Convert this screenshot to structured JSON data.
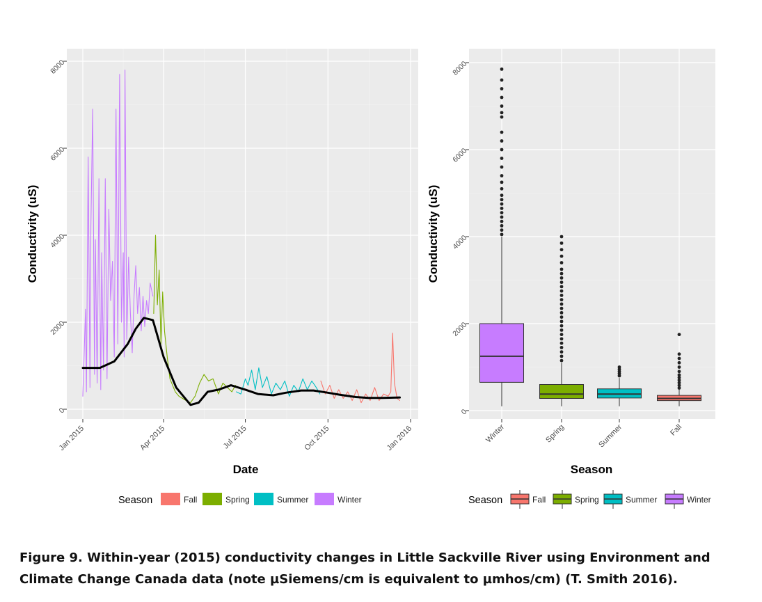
{
  "figure": {
    "caption_line1": "Figure 9.  Within-year (2015) conductivity changes in Little Sackville River using Environment and",
    "caption_line2": "Climate Change Canada data (note µSiemens/cm is equivalent to µmhos/cm) (T. Smith 2016)."
  },
  "season_colors": {
    "Fall": "#f8766d",
    "Spring": "#7cae00",
    "Summer": "#00bfc4",
    "Winter": "#c77cff"
  },
  "chart_data": [
    {
      "type": "line",
      "xlabel": "Date",
      "ylabel": "Conductivity (uS)",
      "x_ticks": [
        "Jan 2015",
        "Apr 2015",
        "Jul 2015",
        "Oct 2015",
        "Jan 2016"
      ],
      "y_ticks": [
        0,
        2000,
        4000,
        6000,
        8000
      ],
      "xlim": [
        "2015-01-01",
        "2016-01-01"
      ],
      "ylim": [
        0,
        8000
      ],
      "grid": true,
      "legend": {
        "title": "Season",
        "position": "bottom",
        "entries": [
          "Fall",
          "Spring",
          "Summer",
          "Winter"
        ]
      },
      "series": [
        {
          "name": "Winter",
          "x": [
            "2015-01-01",
            "2015-01-04",
            "2015-01-05",
            "2015-01-07",
            "2015-01-09",
            "2015-01-10",
            "2015-01-12",
            "2015-01-14",
            "2015-01-15",
            "2015-01-17",
            "2015-01-19",
            "2015-01-21",
            "2015-01-22",
            "2015-01-24",
            "2015-01-26",
            "2015-01-28",
            "2015-01-30",
            "2015-02-01",
            "2015-02-03",
            "2015-02-05",
            "2015-02-07",
            "2015-02-09",
            "2015-02-11",
            "2015-02-13",
            "2015-02-15",
            "2015-02-16",
            "2015-02-17",
            "2015-02-19",
            "2015-02-21",
            "2015-02-23",
            "2015-02-25",
            "2015-02-27",
            "2015-03-01",
            "2015-03-03",
            "2015-03-05",
            "2015-03-07",
            "2015-03-09",
            "2015-03-11",
            "2015-03-13",
            "2015-03-15",
            "2015-03-17",
            "2015-03-20"
          ],
          "y": [
            300,
            2300,
            400,
            5800,
            500,
            4200,
            6900,
            800,
            3900,
            600,
            5300,
            450,
            3600,
            900,
            5300,
            700,
            4600,
            2500,
            3400,
            1200,
            6900,
            1500,
            7700,
            2000,
            3600,
            1200,
            7800,
            1600,
            3500,
            2200,
            1300,
            2600,
            3300,
            2200,
            2800,
            1800,
            2600,
            1900,
            2500,
            2200,
            2900,
            2600
          ]
        },
        {
          "name": "Spring",
          "x": [
            "2015-03-21",
            "2015-03-23",
            "2015-03-25",
            "2015-03-27",
            "2015-03-29",
            "2015-03-31",
            "2015-04-02",
            "2015-04-05",
            "2015-04-08",
            "2015-04-11",
            "2015-04-14",
            "2015-04-18",
            "2015-04-22",
            "2015-04-26",
            "2015-05-01",
            "2015-05-06",
            "2015-05-11",
            "2015-05-16",
            "2015-05-21",
            "2015-05-26",
            "2015-06-01",
            "2015-06-06",
            "2015-06-11",
            "2015-06-16",
            "2015-06-20"
          ],
          "y": [
            2200,
            4000,
            2400,
            3200,
            1500,
            2700,
            1800,
            1200,
            700,
            550,
            400,
            300,
            250,
            200,
            150,
            300,
            600,
            800,
            650,
            700,
            350,
            600,
            500,
            400,
            550
          ]
        },
        {
          "name": "Summer",
          "x": [
            "2015-06-21",
            "2015-06-26",
            "2015-07-01",
            "2015-07-04",
            "2015-07-08",
            "2015-07-12",
            "2015-07-16",
            "2015-07-20",
            "2015-07-25",
            "2015-07-30",
            "2015-08-04",
            "2015-08-09",
            "2015-08-14",
            "2015-08-19",
            "2015-08-24",
            "2015-08-29",
            "2015-09-03",
            "2015-09-08",
            "2015-09-13",
            "2015-09-18",
            "2015-09-22"
          ],
          "y": [
            400,
            350,
            700,
            550,
            900,
            450,
            950,
            500,
            750,
            350,
            600,
            450,
            650,
            300,
            550,
            400,
            700,
            450,
            650,
            500,
            350
          ]
        },
        {
          "name": "Fall",
          "x": [
            "2015-09-23",
            "2015-09-28",
            "2015-10-03",
            "2015-10-08",
            "2015-10-13",
            "2015-10-18",
            "2015-10-23",
            "2015-10-28",
            "2015-11-02",
            "2015-11-07",
            "2015-11-12",
            "2015-11-17",
            "2015-11-22",
            "2015-11-27",
            "2015-12-02",
            "2015-12-07",
            "2015-12-10",
            "2015-12-12",
            "2015-12-14",
            "2015-12-17",
            "2015-12-20"
          ],
          "y": [
            650,
            350,
            550,
            250,
            450,
            250,
            400,
            200,
            450,
            150,
            350,
            200,
            500,
            200,
            350,
            300,
            400,
            1750,
            600,
            250,
            200
          ]
        },
        {
          "name": "",
          "x": [
            "2015-01-01",
            "2015-01-20",
            "2015-02-05",
            "2015-02-20",
            "2015-03-01",
            "2015-03-10",
            "2015-03-20",
            "2015-04-01",
            "2015-04-15",
            "2015-05-01",
            "2015-05-10",
            "2015-05-20",
            "2015-06-01",
            "2015-06-15",
            "2015-07-01",
            "2015-07-15",
            "2015-08-01",
            "2015-08-15",
            "2015-09-01",
            "2015-09-15",
            "2015-10-01",
            "2015-10-15",
            "2015-11-01",
            "2015-11-15",
            "2015-12-01",
            "2015-12-20"
          ],
          "y": [
            950,
            950,
            1100,
            1500,
            1850,
            2100,
            2050,
            1200,
            500,
            100,
            150,
            400,
            450,
            550,
            450,
            350,
            320,
            380,
            430,
            430,
            380,
            330,
            280,
            260,
            260,
            270
          ]
        }
      ]
    },
    {
      "type": "box",
      "xlabel": "Season",
      "ylabel": "Conductivity (uS)",
      "categories": [
        "Winter",
        "Spring",
        "Summer",
        "Fall"
      ],
      "y_ticks": [
        0,
        2000,
        4000,
        6000,
        8000
      ],
      "ylim": [
        0,
        8000
      ],
      "grid": true,
      "legend": {
        "title": "Season",
        "position": "bottom",
        "entries": [
          "Fall",
          "Spring",
          "Summer",
          "Winter"
        ]
      },
      "boxes": [
        {
          "category": "Winter",
          "whisker_low": 100,
          "q1": 650,
          "median": 1250,
          "q3": 2000,
          "whisker_high": 4000,
          "outliers": [
            4050,
            4150,
            4250,
            4350,
            4450,
            4550,
            4650,
            4750,
            4850,
            4950,
            5100,
            5250,
            5400,
            5600,
            5800,
            6000,
            6200,
            6400,
            6750,
            6850,
            7000,
            7200,
            7400,
            7600,
            7850
          ]
        },
        {
          "category": "Spring",
          "whisker_low": 100,
          "q1": 280,
          "median": 380,
          "q3": 600,
          "whisker_high": 1100,
          "outliers": [
            1150,
            1250,
            1350,
            1450,
            1550,
            1650,
            1750,
            1850,
            1950,
            2050,
            2150,
            2250,
            2350,
            2450,
            2550,
            2650,
            2750,
            2850,
            2950,
            3050,
            3150,
            3250,
            3400,
            3550,
            3700,
            3850,
            4000
          ]
        },
        {
          "category": "Summer",
          "whisker_low": 100,
          "q1": 290,
          "median": 380,
          "q3": 500,
          "whisker_high": 750,
          "outliers": [
            800,
            850,
            900,
            950,
            1000
          ]
        },
        {
          "category": "Fall",
          "whisker_low": 100,
          "q1": 230,
          "median": 280,
          "q3": 350,
          "whisker_high": 500,
          "outliers": [
            520,
            580,
            640,
            700,
            760,
            820,
            900,
            1000,
            1100,
            1200,
            1300,
            1750
          ]
        }
      ]
    }
  ]
}
